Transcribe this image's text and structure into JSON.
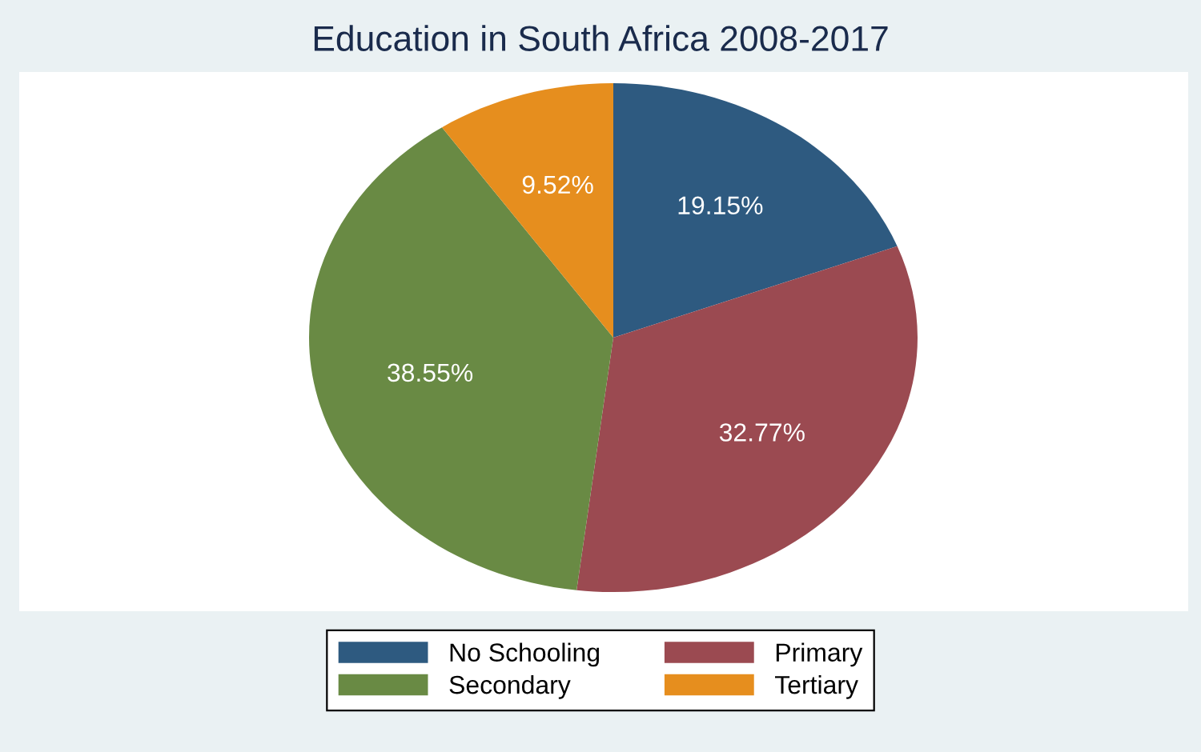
{
  "chart_data": {
    "type": "pie",
    "title": "Education in South Africa 2008-2017",
    "categories": [
      "No Schooling",
      "Primary",
      "Secondary",
      "Tertiary"
    ],
    "values": [
      19.15,
      32.77,
      38.55,
      9.52
    ],
    "colors": [
      "#2e5a80",
      "#9b4a51",
      "#698a44",
      "#e68e1e"
    ],
    "value_labels": [
      "19.15%",
      "32.77%",
      "38.55%",
      "9.52%"
    ],
    "legend": "bottom"
  }
}
